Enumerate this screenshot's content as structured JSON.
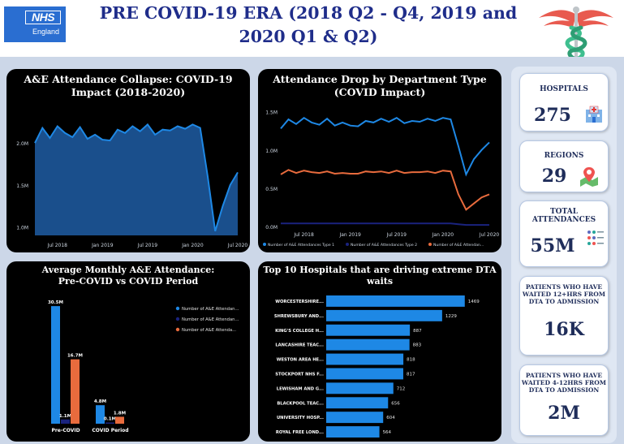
{
  "header": {
    "logo_text": "NHS",
    "logo_sub": "England",
    "title_line1": "PRE COVID-19 ERA (2018 Q2 - Q4, 2019 and",
    "title_line2": "2020 Q1 & Q2)"
  },
  "colors": {
    "accent_blue": "#1e88e5",
    "dark_blue": "#1a237e",
    "orange": "#e86b3d",
    "navy_title": "#1f2d8a",
    "background": "#ccd7e8"
  },
  "panels": {
    "area_title_1": "A&E Attendance Collapse: COVID-19",
    "area_title_2": "Impact (2018-2020)",
    "line_title_1": "Attendance Drop by Department Type",
    "line_title_2": "(COVID Impact)",
    "bar_title_1": "Average Monthly A&E Attendance:",
    "bar_title_2": "Pre-COVID vs COVID Period",
    "hbar_title_1": "Top 10 Hospitals that are driving extreme DTA",
    "hbar_title_2": "waits"
  },
  "kpis": {
    "hospitals_label": "HOSPITALS",
    "hospitals_value": "275",
    "hospitals_icon": "hospital-icon",
    "regions_label": "REGIONS",
    "regions_value": "29",
    "regions_icon": "map-pin-icon",
    "attendances_label_1": "TOTAL",
    "attendances_label_2": "ATTENDANCES",
    "attendances_value": "55M",
    "attendances_icon": "people-icon",
    "wait12_label_1": "PATIENTS WHO HAVE",
    "wait12_label_2": "WAITED 12+HRS FROM",
    "wait12_label_3": "DTA TO ADMISSION",
    "wait12_value": "16K",
    "wait4_label_1": "PATIENTS WHO HAVE",
    "wait4_label_2": "WAITED 4-12HRS FROM",
    "wait4_label_3": "DTA TO ADMISSION",
    "wait4_value": "2M"
  },
  "chart_data": [
    {
      "type": "area",
      "title": "A&E Attendance Collapse: COVID-19 Impact (2018-2020)",
      "x_ticks": [
        "Jul 2018",
        "Jan 2019",
        "Jul 2019",
        "Jan 2020",
        "Jul 2020"
      ],
      "y_ticks": [
        "1.0M",
        "1.5M",
        "2.0M"
      ],
      "ylim": [
        0.9,
        2.35
      ],
      "x": [
        "Apr 2018",
        "May 2018",
        "Jun 2018",
        "Jul 2018",
        "Aug 2018",
        "Sep 2018",
        "Oct 2018",
        "Nov 2018",
        "Dec 2018",
        "Jan 2019",
        "Feb 2019",
        "Mar 2019",
        "Apr 2019",
        "May 2019",
        "Jun 2019",
        "Jul 2019",
        "Aug 2019",
        "Sep 2019",
        "Oct 2019",
        "Nov 2019",
        "Dec 2019",
        "Jan 2020",
        "Feb 2020",
        "Mar 2020",
        "Apr 2020",
        "May 2020",
        "Jun 2020",
        "Jul 2020"
      ],
      "values": [
        2.0,
        2.18,
        2.06,
        2.2,
        2.12,
        2.07,
        2.19,
        2.05,
        2.1,
        2.04,
        2.03,
        2.16,
        2.12,
        2.2,
        2.14,
        2.22,
        2.1,
        2.16,
        2.15,
        2.2,
        2.17,
        2.22,
        2.18,
        1.6,
        0.95,
        1.25,
        1.5,
        1.65
      ],
      "color": "#1e88e5"
    },
    {
      "type": "line",
      "title": "Attendance Drop by Department Type (COVID Impact)",
      "x_ticks": [
        "Jul 2018",
        "Jan 2019",
        "Jul 2019",
        "Jan 2020",
        "Jul 2020"
      ],
      "y_ticks": [
        "0.0M",
        "0.5M",
        "1.0M",
        "1.5M"
      ],
      "ylim": [
        0,
        1.55
      ],
      "x": [
        "Apr 2018",
        "May 2018",
        "Jun 2018",
        "Jul 2018",
        "Aug 2018",
        "Sep 2018",
        "Oct 2018",
        "Nov 2018",
        "Dec 2018",
        "Jan 2019",
        "Feb 2019",
        "Mar 2019",
        "Apr 2019",
        "May 2019",
        "Jun 2019",
        "Jul 2019",
        "Aug 2019",
        "Sep 2019",
        "Oct 2019",
        "Nov 2019",
        "Dec 2019",
        "Jan 2020",
        "Feb 2020",
        "Mar 2020",
        "Apr 2020",
        "May 2020",
        "Jun 2020",
        "Jul 2020"
      ],
      "series": [
        {
          "name": "Number of A&E Attendances Type 1",
          "color": "#1e88e5",
          "values": [
            1.28,
            1.4,
            1.34,
            1.42,
            1.36,
            1.33,
            1.41,
            1.32,
            1.36,
            1.32,
            1.31,
            1.38,
            1.36,
            1.41,
            1.37,
            1.42,
            1.35,
            1.38,
            1.37,
            1.41,
            1.38,
            1.42,
            1.4,
            1.05,
            0.68,
            0.88,
            1.0,
            1.1
          ]
        },
        {
          "name": "Number of A&E Attendances Type 2",
          "color": "#1a237e",
          "values": [
            0.04,
            0.04,
            0.04,
            0.04,
            0.04,
            0.04,
            0.04,
            0.04,
            0.04,
            0.04,
            0.04,
            0.04,
            0.04,
            0.04,
            0.04,
            0.04,
            0.04,
            0.04,
            0.04,
            0.04,
            0.04,
            0.04,
            0.04,
            0.03,
            0.02,
            0.02,
            0.02,
            0.02
          ]
        },
        {
          "name": "Number of A&E Attendances Other A&E Department",
          "color": "#e86b3d",
          "values": [
            0.68,
            0.74,
            0.7,
            0.73,
            0.71,
            0.7,
            0.72,
            0.69,
            0.7,
            0.69,
            0.69,
            0.72,
            0.71,
            0.72,
            0.7,
            0.73,
            0.7,
            0.71,
            0.71,
            0.72,
            0.7,
            0.73,
            0.72,
            0.42,
            0.22,
            0.3,
            0.38,
            0.42
          ]
        }
      ],
      "legend_labels": [
        "Number of A&E Attendances Type 1",
        "Number of A&E Attendances Type 2",
        "Number of A&E Attendan..."
      ],
      "legend": "bottom"
    },
    {
      "type": "bar",
      "title": "Average Monthly A&E Attendance: Pre-COVID vs COVID Period",
      "categories": [
        "Pre-COVID",
        "COVID Period"
      ],
      "series": [
        {
          "name": "Number of A&E Attendan...",
          "color": "#1e88e5",
          "values": [
            30.5,
            4.8
          ],
          "labels": [
            "30.5M",
            "4.8M"
          ]
        },
        {
          "name": "Number of A&E Attendan...",
          "color": "#1a237e",
          "values": [
            1.1,
            0.1
          ],
          "labels": [
            "1.1M",
            "0.1M"
          ]
        },
        {
          "name": "Number of A&E Attenda...",
          "color": "#e86b3d",
          "values": [
            16.7,
            1.8
          ],
          "labels": [
            "16.7M",
            "1.8M"
          ]
        }
      ],
      "ylim": [
        0,
        32
      ],
      "legend": "top-right"
    },
    {
      "type": "bar",
      "orientation": "horizontal",
      "title": "Top 10 Hospitals that are driving extreme DTA waits",
      "categories": [
        "WORCESTERSHIRE...",
        "SHREWSBURY AND...",
        "KING'S COLLEGE H...",
        "LANCASHIRE TEAC...",
        "WESTON AREA HE...",
        "STOCKPORT NHS F...",
        "LEWISHAM AND G...",
        "BLACKPOOL TEAC...",
        "UNIVERSITY HOSP...",
        "ROYAL FREE LOND..."
      ],
      "values": [
        1469,
        1229,
        887,
        883,
        818,
        817,
        712,
        656,
        604,
        564
      ],
      "color": "#1e88e5",
      "xlim": [
        0,
        1600
      ]
    }
  ]
}
